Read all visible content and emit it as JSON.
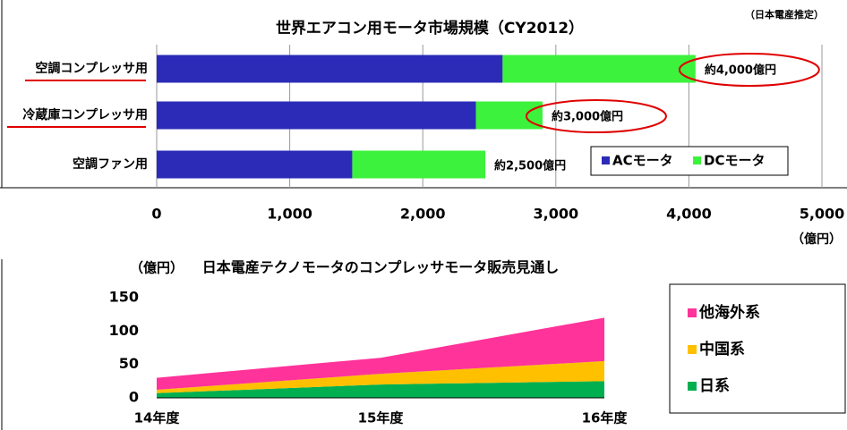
{
  "chart_data": [
    {
      "type": "barh_stacked",
      "title": "世界エアコン用モータ市場規模（CY2012）",
      "note": "（日本電産推定）",
      "categories": [
        "空調コンプレッサ用",
        "冷蔵庫コンプレッサ用",
        "空調ファン用"
      ],
      "series": [
        {
          "name": "ACモータ",
          "color": "#2b2bb8",
          "values": [
            2600,
            2400,
            1470
          ]
        },
        {
          "name": "DCモータ",
          "color": "#3cf23c",
          "values": [
            1450,
            500,
            1000
          ]
        }
      ],
      "annotations": [
        "約4,000億円",
        "約3,000億円",
        "約2,500億円"
      ],
      "xlabel": "（億円）",
      "xlim": [
        0,
        5000
      ],
      "xticks": [
        0,
        {
          "value": 1000,
          "label": "1,000"
        },
        {
          "value": 2000,
          "label": "2,000"
        },
        {
          "value": 3000,
          "label": "3,000"
        },
        {
          "value": 4000,
          "label": "4,000"
        },
        {
          "value": 5000,
          "label": "5,000"
        }
      ],
      "grid": true,
      "legend": "bottom-right"
    },
    {
      "type": "area_stacked",
      "title": "日本電産テクノモータのコンプレッサモータ販売見通し",
      "ylabel": "（億円）",
      "categories": [
        "14年度",
        "15年度",
        "16年度"
      ],
      "series": [
        {
          "name": "日系",
          "color": "#00b050",
          "values": [
            7,
            20,
            25
          ]
        },
        {
          "name": "中国系",
          "color": "#ffc000",
          "values": [
            5,
            16,
            30
          ]
        },
        {
          "name": "他海外系",
          "color": "#ff3399",
          "values": [
            18,
            24,
            65
          ]
        }
      ],
      "ylim": [
        0,
        150
      ],
      "yticks": [
        0,
        50,
        100,
        150
      ],
      "grid": false,
      "legend": "right"
    }
  ]
}
